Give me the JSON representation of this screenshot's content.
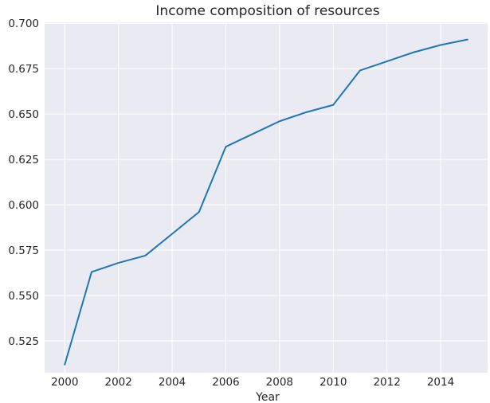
{
  "chart_data": {
    "type": "line",
    "title": "Income composition of resources",
    "xlabel": "Year",
    "ylabel": "",
    "xlim": [
      1999.25,
      2015.75
    ],
    "ylim": [
      0.5075,
      0.7005
    ],
    "x_ticks": [
      2000,
      2002,
      2004,
      2006,
      2008,
      2010,
      2012,
      2014
    ],
    "y_ticks": [
      0.525,
      0.55,
      0.575,
      0.6,
      0.625,
      0.65,
      0.675,
      0.7
    ],
    "x_tick_labels": [
      "2000",
      "2002",
      "2004",
      "2006",
      "2008",
      "2010",
      "2012",
      "2014"
    ],
    "y_tick_labels": [
      "0.525",
      "0.550",
      "0.575",
      "0.600",
      "0.625",
      "0.650",
      "0.675",
      "0.700"
    ],
    "grid": true,
    "background": "#eaeaf2",
    "line_color": "#1f77b4",
    "series": [
      {
        "x": [
          2000,
          2001,
          2002,
          2003,
          2004,
          2005,
          2006,
          2007,
          2008,
          2009,
          2010,
          2011,
          2012,
          2013,
          2014,
          2015
        ],
        "values": [
          0.512,
          0.563,
          0.568,
          0.572,
          0.584,
          0.596,
          0.632,
          0.639,
          0.646,
          0.651,
          0.655,
          0.674,
          0.679,
          0.684,
          0.688,
          0.691
        ]
      }
    ]
  }
}
